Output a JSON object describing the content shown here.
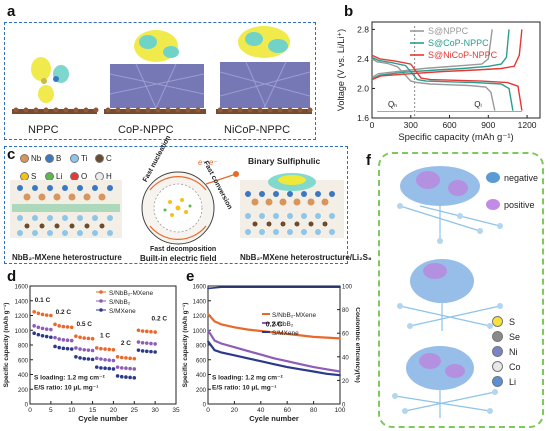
{
  "panel_a": {
    "label": "a",
    "structures": [
      "NPPC",
      "CoP-NPPC",
      "NiCoP-NPPC"
    ]
  },
  "panel_b": {
    "label": "b",
    "chart_data": {
      "type": "line",
      "xlabel": "Specific capacity (mAh g⁻¹)",
      "ylabel": "Voltage (V vs. Li/Li⁺)",
      "xlim": [
        0,
        1300
      ],
      "ylim": [
        1.6,
        2.9
      ],
      "xticks": [
        0,
        300,
        600,
        900,
        1200
      ],
      "yticks": [
        1.6,
        2.0,
        2.4,
        2.8
      ],
      "annotations": [
        "Qₕ",
        "Qₗ"
      ],
      "series": [
        {
          "name": "S@NPPC",
          "color": "#9a9a9a",
          "discharge": [
            [
              0,
              2.4
            ],
            [
              40,
              2.36
            ],
            [
              120,
              2.34
            ],
            [
              200,
              2.29
            ],
            [
              300,
              2.1
            ],
            [
              350,
              2.08
            ],
            [
              450,
              2.06
            ],
            [
              600,
              2.05
            ],
            [
              750,
              2.04
            ],
            [
              880,
              2.02
            ],
            [
              920,
              1.95
            ],
            [
              950,
              1.7
            ]
          ],
          "charge": [
            [
              0,
              2.15
            ],
            [
              50,
              2.2
            ],
            [
              200,
              2.23
            ],
            [
              400,
              2.27
            ],
            [
              550,
              2.29
            ],
            [
              700,
              2.31
            ],
            [
              850,
              2.33
            ],
            [
              900,
              2.4
            ],
            [
              930,
              2.8
            ]
          ]
        },
        {
          "name": "S@CoP-NPPC",
          "color": "#2a9d8f",
          "discharge": [
            [
              0,
              2.42
            ],
            [
              50,
              2.38
            ],
            [
              150,
              2.35
            ],
            [
              260,
              2.31
            ],
            [
              350,
              2.12
            ],
            [
              420,
              2.1
            ],
            [
              600,
              2.09
            ],
            [
              800,
              2.08
            ],
            [
              1000,
              2.06
            ],
            [
              1060,
              2.0
            ],
            [
              1090,
              1.7
            ]
          ],
          "charge": [
            [
              0,
              2.13
            ],
            [
              60,
              2.18
            ],
            [
              250,
              2.22
            ],
            [
              500,
              2.25
            ],
            [
              700,
              2.27
            ],
            [
              900,
              2.3
            ],
            [
              1000,
              2.33
            ],
            [
              1040,
              2.42
            ],
            [
              1060,
              2.8
            ]
          ]
        },
        {
          "name": "S@NiCoP-NPPC",
          "color": "#e53935",
          "discharge": [
            [
              0,
              2.45
            ],
            [
              60,
              2.4
            ],
            [
              180,
              2.37
            ],
            [
              300,
              2.33
            ],
            [
              380,
              2.14
            ],
            [
              450,
              2.12
            ],
            [
              650,
              2.11
            ],
            [
              850,
              2.1
            ],
            [
              1050,
              2.08
            ],
            [
              1130,
              2.03
            ],
            [
              1160,
              1.7
            ]
          ],
          "charge": [
            [
              0,
              2.12
            ],
            [
              70,
              2.17
            ],
            [
              300,
              2.2
            ],
            [
              550,
              2.23
            ],
            [
              800,
              2.25
            ],
            [
              1000,
              2.27
            ],
            [
              1100,
              2.3
            ],
            [
              1140,
              2.45
            ],
            [
              1160,
              2.8
            ]
          ]
        }
      ]
    }
  },
  "panel_c": {
    "label": "c",
    "legend": [
      {
        "symbol": "Nb",
        "color": "#d8955c"
      },
      {
        "symbol": "B",
        "color": "#3a78c2"
      },
      {
        "symbol": "Ti",
        "color": "#8dc6e8"
      },
      {
        "symbol": "C",
        "color": "#6d4b2c"
      },
      {
        "symbol": "S",
        "color": "#f2c21b"
      },
      {
        "symbol": "Li",
        "color": "#5fb84a"
      },
      {
        "symbol": "O",
        "color": "#e53935"
      },
      {
        "symbol": "H",
        "color": "#ececec"
      }
    ],
    "left_caption": "NbB₂-MXene heterostructure",
    "center_caption": "Built-in electric field",
    "right_caption": "NbB₂-MXene heterostructure/Li₂S₆",
    "right_top": "Binary Sulfiphulic",
    "circle_labels": [
      "Fast nucleation",
      "Fast conversion",
      "Fast decomposition"
    ],
    "electron_label": "e⁻ e⁻"
  },
  "panel_d": {
    "label": "d",
    "chart_data": {
      "type": "scatter",
      "xlabel": "Cycle number",
      "ylabel": "Specific capacity (mAh g⁻¹)",
      "xlim": [
        0,
        35
      ],
      "ylim": [
        0,
        1600
      ],
      "xticks": [
        0,
        5,
        10,
        15,
        20,
        25,
        30,
        35
      ],
      "yticks": [
        0,
        200,
        400,
        600,
        800,
        1000,
        1200,
        1400,
        1600
      ],
      "rate_labels": [
        "0.1 C",
        "0.2 C",
        "0.5 C",
        "1 C",
        "2 C",
        "0.2 C"
      ],
      "notes": [
        "S loading: 1.2 mg cm⁻²",
        "E/S ratio: 10 μL mg⁻¹"
      ],
      "series": [
        {
          "name": "S/NbB₂-MXene",
          "color": "#e8692a",
          "marker": "circle",
          "values": [
            1250,
            1230,
            1215,
            1205,
            1200,
            1080,
            1060,
            1050,
            1045,
            1040,
            920,
            905,
            895,
            890,
            885,
            760,
            750,
            745,
            740,
            735,
            640,
            630,
            625,
            620,
            615,
            1000,
            990,
            985,
            980,
            975
          ]
        },
        {
          "name": "S/NbB₂",
          "color": "#8e5db8",
          "marker": "circle",
          "values": [
            1060,
            1040,
            1025,
            1015,
            1010,
            900,
            880,
            870,
            865,
            860,
            760,
            745,
            735,
            730,
            725,
            620,
            610,
            600,
            595,
            590,
            500,
            490,
            485,
            480,
            475,
            840,
            830,
            825,
            820,
            815
          ]
        },
        {
          "name": "S/MXene",
          "color": "#2d3a8c",
          "marker": "circle",
          "values": [
            960,
            940,
            925,
            915,
            905,
            780,
            765,
            755,
            750,
            745,
            640,
            625,
            615,
            610,
            605,
            500,
            490,
            485,
            480,
            475,
            380,
            370,
            365,
            360,
            355,
            730,
            720,
            715,
            710,
            705
          ]
        }
      ]
    }
  },
  "panel_e": {
    "label": "e",
    "chart_data": {
      "type": "line",
      "xlabel": "Cycle number",
      "ylabel": "Specific capacity (mAh g⁻¹)",
      "y2label": "Coulombic efficiency(%)",
      "xlim": [
        0,
        100
      ],
      "ylim": [
        0,
        1600
      ],
      "y2lim": [
        0,
        100
      ],
      "xticks": [
        0,
        20,
        40,
        60,
        80,
        100
      ],
      "yticks": [
        0,
        200,
        400,
        600,
        800,
        1000,
        1200,
        1400,
        1600
      ],
      "y2ticks": [
        0,
        20,
        40,
        60,
        80,
        100
      ],
      "rate_label": "0.2 C",
      "notes": [
        "S loading: 1.2 mg cm⁻²",
        "E/S ratio: 10 μL mg⁻¹"
      ],
      "series": [
        {
          "name": "S/NbB₂-MXene",
          "color": "#e8692a",
          "x": [
            0,
            5,
            10,
            20,
            30,
            40,
            50,
            60,
            70,
            80,
            90,
            100
          ],
          "values": [
            1220,
            1120,
            1080,
            1040,
            1010,
            990,
            970,
            950,
            930,
            910,
            900,
            890
          ]
        },
        {
          "name": "S/NbB₂",
          "color": "#8e5db8",
          "x": [
            0,
            5,
            10,
            20,
            30,
            40,
            50,
            60,
            70,
            80,
            90,
            100
          ],
          "values": [
            1000,
            860,
            820,
            770,
            720,
            670,
            620,
            580,
            540,
            500,
            470,
            440
          ]
        },
        {
          "name": "S/MXene",
          "color": "#2d3a8c",
          "x": [
            0,
            5,
            10,
            20,
            30,
            40,
            50,
            60,
            70,
            80,
            90,
            100
          ],
          "values": [
            850,
            730,
            700,
            660,
            620,
            580,
            540,
            500,
            470,
            440,
            410,
            390
          ]
        },
        {
          "name": "Coulombic efficiency",
          "color": "#2d3a8c",
          "axis": "y2",
          "x": [
            0,
            10,
            20,
            30,
            40,
            50,
            60,
            70,
            80,
            90,
            100
          ],
          "values": [
            98,
            99,
            99,
            99,
            99,
            99,
            99,
            99,
            99,
            99,
            99
          ]
        }
      ]
    }
  },
  "panel_f": {
    "label": "f",
    "legend_charge": [
      {
        "name": "negative",
        "color": "#5b9bd5"
      },
      {
        "name": "positive",
        "color": "#c38be8"
      }
    ],
    "legend_atoms": [
      {
        "symbol": "S",
        "color": "#f5e33a"
      },
      {
        "symbol": "Se",
        "color": "#8a8a8a"
      },
      {
        "symbol": "Ni",
        "color": "#7a83c4"
      },
      {
        "symbol": "Co",
        "color": "#e8e8e8"
      },
      {
        "symbol": "Li",
        "color": "#5b8fd6"
      }
    ]
  }
}
